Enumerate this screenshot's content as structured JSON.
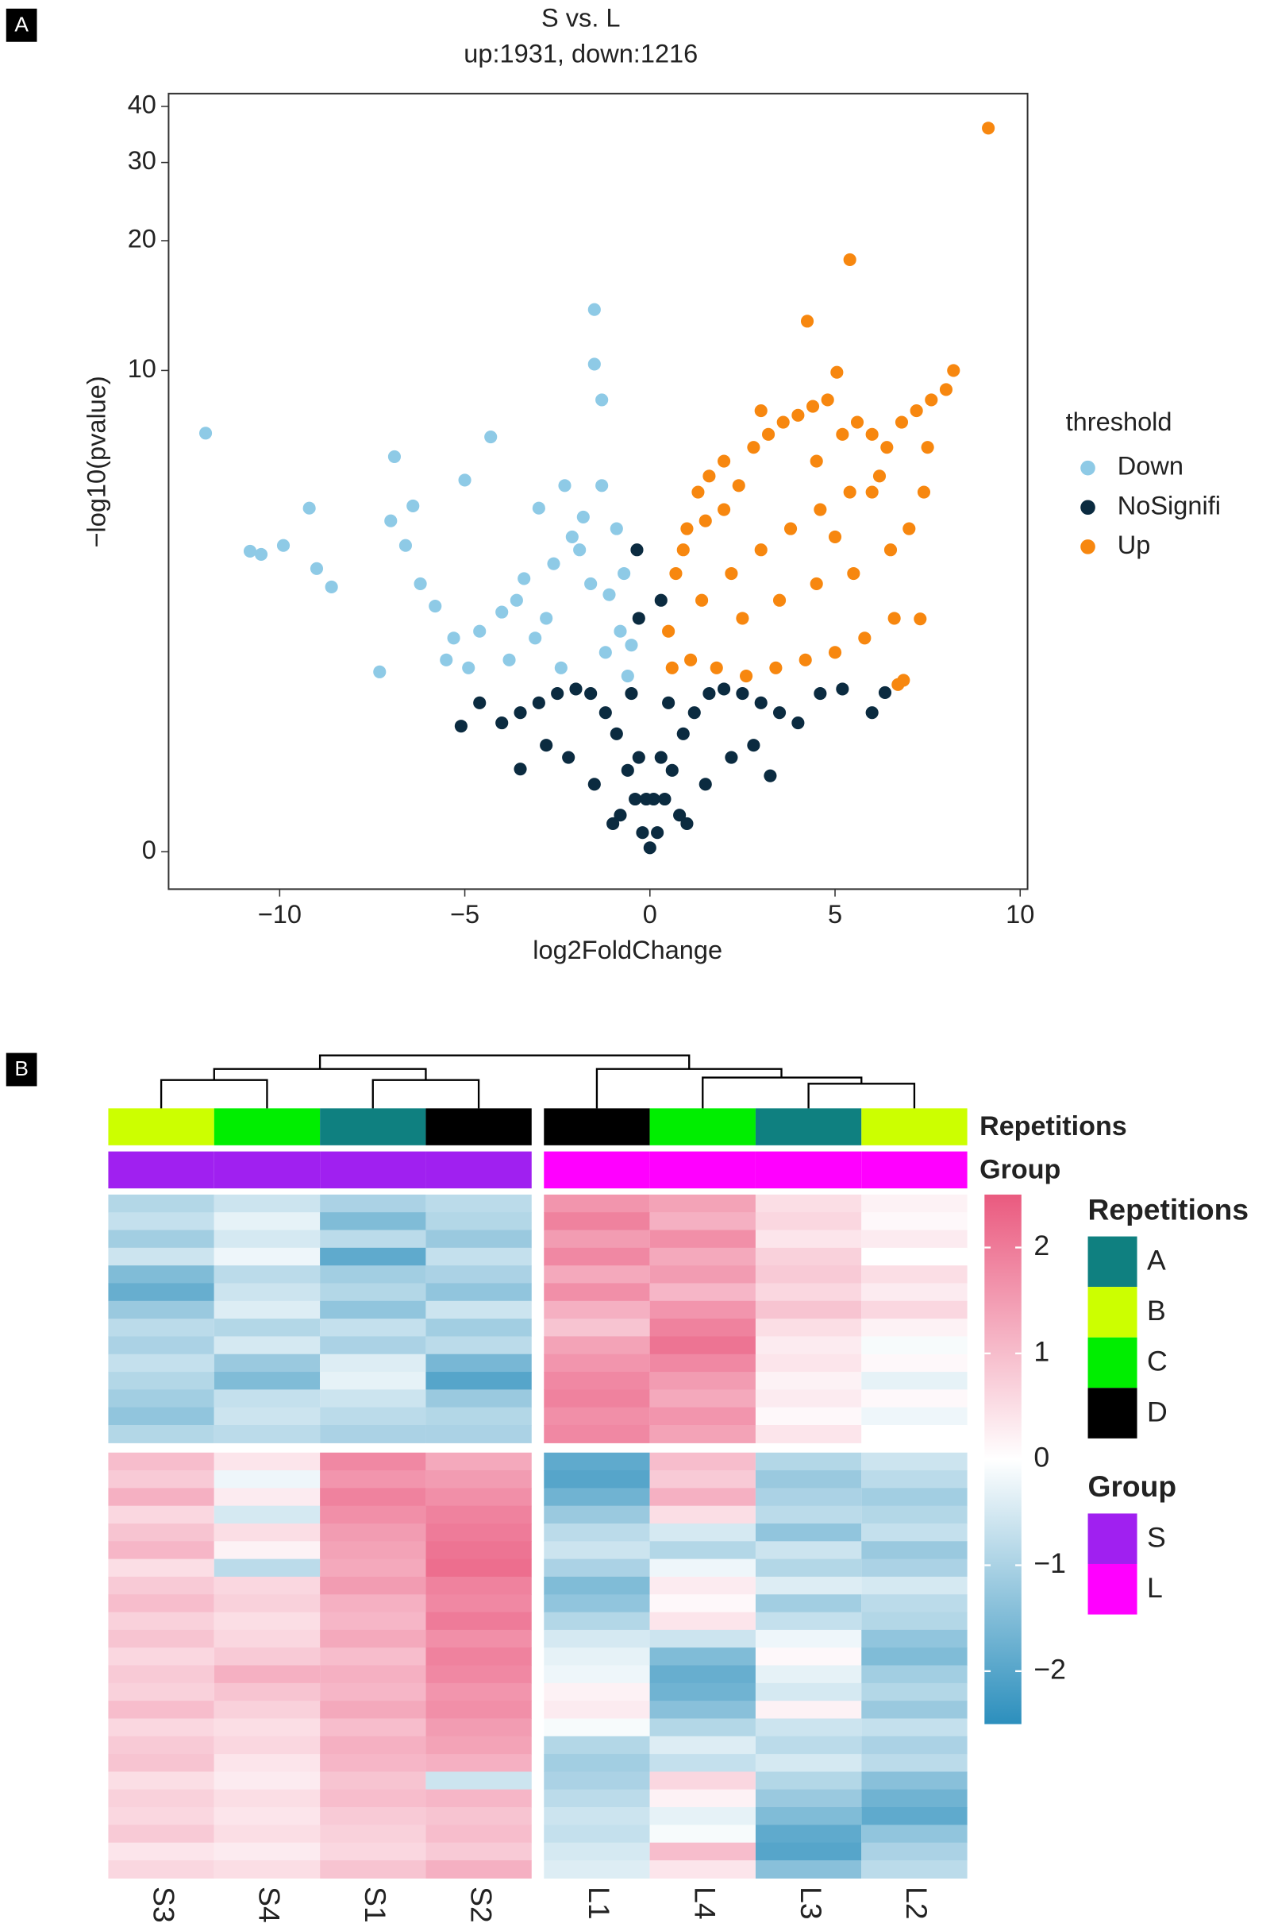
{
  "chart_data": [
    {
      "type": "scatter",
      "panel_label": "A",
      "title": "S vs. L",
      "subtitle": "up:1931, down:1216",
      "x_label": "log2FoldChange",
      "y_label": "−log10(pvalue)",
      "y_scale": "log1p",
      "xlim": [
        -13,
        10.2
      ],
      "ylim": [
        -0.17,
        42.7
      ],
      "xticks": [
        {
          "value": -10,
          "label": "−10"
        },
        {
          "value": -5,
          "label": "−5"
        },
        0,
        5,
        10
      ],
      "yticks": [
        0,
        10,
        20,
        30,
        40
      ],
      "legend_title": "threshold",
      "legend_position": "right",
      "series": [
        {
          "name": "Down",
          "color": "#8ecae6",
          "x": [
            -12.0,
            -1.5,
            -1.5,
            -1.3,
            -4.3,
            -6.9,
            -9.2,
            -10.8,
            -10.5,
            -9.9,
            -9.0,
            -8.6,
            -7.3,
            -5.0,
            -3.0,
            -2.3,
            -1.3,
            -1.8,
            -2.1,
            -0.9,
            -0.7,
            -1.1,
            -2.6,
            -3.4,
            -4.0,
            -4.6,
            -5.3,
            -5.8,
            -6.2,
            -6.6,
            -7.0,
            -3.8,
            -3.1,
            -2.8,
            -1.6,
            -0.8,
            -1.2,
            -2.4,
            -1.9,
            -0.6,
            -4.9,
            -5.5,
            -3.6,
            -6.4,
            -0.5
          ],
          "y": [
            7.05,
            13.9,
            10.35,
            8.5,
            6.9,
            6.16,
            4.54,
            3.47,
            3.4,
            3.6,
            3.1,
            2.74,
            1.45,
            5.37,
            4.54,
            5.2,
            5.2,
            4.3,
            3.8,
            4.0,
            3.0,
            2.6,
            3.2,
            2.9,
            2.3,
            2.0,
            1.9,
            2.4,
            2.8,
            3.6,
            4.2,
            1.6,
            1.9,
            2.2,
            2.8,
            2.0,
            1.7,
            1.5,
            3.5,
            1.4,
            1.5,
            1.6,
            2.5,
            4.6,
            1.8
          ]
        },
        {
          "name": "NoSignifi",
          "color": "#0b2b40",
          "x": [
            0,
            0.2,
            -0.2,
            0.4,
            -0.4,
            0.6,
            -0.6,
            0.9,
            -0.9,
            1.2,
            -1.2,
            1.6,
            -1.6,
            2.0,
            -2.0,
            2.5,
            -2.5,
            3.0,
            -3.0,
            3.5,
            -3.5,
            4.0,
            -4.0,
            4.6,
            -4.6,
            5.2,
            -5.1,
            6.35,
            6.0,
            -3.5,
            3.25,
            0.1,
            -0.1,
            0.3,
            -0.3,
            0.8,
            -0.8,
            1.5,
            -1.5,
            2.2,
            -2.2,
            2.8,
            -2.8,
            -0.35,
            -0.3,
            0.3,
            1.0,
            -1.0,
            0.5,
            -0.5
          ],
          "y": [
            0.02,
            0.1,
            0.1,
            0.3,
            0.3,
            0.5,
            0.5,
            0.8,
            0.8,
            1.0,
            1.0,
            1.2,
            1.2,
            1.25,
            1.25,
            1.2,
            1.2,
            1.1,
            1.1,
            1.0,
            1.0,
            0.9,
            0.9,
            1.2,
            1.1,
            1.25,
            0.87,
            1.21,
            1.0,
            0.51,
            0.46,
            0.3,
            0.3,
            0.6,
            0.6,
            0.2,
            0.2,
            0.4,
            0.4,
            0.6,
            0.6,
            0.7,
            0.7,
            3.5,
            2.2,
            2.5,
            0.15,
            0.15,
            1.1,
            1.2
          ]
        },
        {
          "name": "Up",
          "color": "#f7870f",
          "x": [
            9.14,
            5.4,
            4.25,
            5.05,
            8.2,
            8.0,
            7.3,
            6.85,
            6.7,
            0.5,
            0.7,
            1.0,
            1.3,
            1.6,
            2.0,
            2.4,
            2.8,
            3.2,
            3.6,
            4.0,
            4.4,
            4.8,
            5.2,
            5.6,
            6.0,
            6.4,
            6.8,
            7.2,
            7.6,
            0.6,
            1.1,
            1.8,
            2.6,
            3.4,
            4.2,
            5.0,
            5.8,
            6.6,
            7.4,
            1.4,
            2.2,
            3.0,
            3.8,
            4.6,
            5.4,
            6.2,
            0.9,
            1.5,
            2.5,
            3.5,
            4.5,
            5.5,
            6.5,
            7.0,
            3.0,
            4.5,
            2.0,
            5.0,
            6.0,
            7.5
          ],
          "y": [
            35.8,
            18.1,
            13.06,
            9.9,
            10.0,
            9.0,
            2.19,
            1.35,
            1.3,
            2.0,
            3.0,
            4.0,
            5.0,
            5.5,
            6.0,
            5.2,
            6.5,
            7.0,
            7.5,
            7.8,
            8.2,
            8.5,
            7.0,
            7.5,
            7.0,
            6.5,
            7.5,
            8.0,
            8.5,
            1.5,
            1.6,
            1.5,
            1.4,
            1.5,
            1.6,
            1.7,
            1.9,
            2.2,
            5.0,
            2.5,
            3.0,
            3.5,
            4.0,
            4.5,
            5.0,
            5.5,
            3.5,
            4.2,
            2.2,
            2.5,
            2.8,
            3.0,
            3.5,
            4.0,
            8.0,
            6.0,
            4.5,
            3.8,
            5.0,
            6.5
          ]
        }
      ]
    },
    {
      "type": "heatmap",
      "panel_label": "B",
      "columns": [
        "S3",
        "S4",
        "S1",
        "S2",
        "L1",
        "L4",
        "L3",
        "L2"
      ],
      "row_blocks": [
        [
          [
            -0.9,
            -0.6,
            -1.0,
            -0.8,
            1.6,
            1.4,
            0.5,
            0.2
          ],
          [
            -0.7,
            -0.3,
            -1.5,
            -0.9,
            1.9,
            1.2,
            0.6,
            0.1
          ],
          [
            -1.1,
            -0.5,
            -0.8,
            -1.2,
            1.5,
            1.7,
            0.4,
            0.3
          ],
          [
            -0.6,
            -0.2,
            -1.9,
            -0.7,
            1.8,
            1.3,
            0.7,
            0.0
          ],
          [
            -1.5,
            -0.8,
            -1.1,
            -1.0,
            1.3,
            1.5,
            0.8,
            0.5
          ],
          [
            -1.8,
            -0.6,
            -0.9,
            -1.3,
            1.7,
            1.1,
            0.6,
            0.3
          ],
          [
            -1.2,
            -0.4,
            -1.3,
            -0.6,
            1.2,
            1.6,
            0.9,
            0.6
          ],
          [
            -0.8,
            -0.9,
            -0.7,
            -1.1,
            0.9,
            1.9,
            0.5,
            0.2
          ],
          [
            -1.0,
            -0.5,
            -1.0,
            -0.8,
            1.4,
            2.1,
            0.3,
            -0.1
          ],
          [
            -0.7,
            -1.2,
            -0.4,
            -1.6,
            1.6,
            1.8,
            0.4,
            0.1
          ],
          [
            -0.9,
            -1.5,
            -0.3,
            -2.0,
            1.8,
            1.5,
            0.2,
            -0.3
          ],
          [
            -1.1,
            -0.7,
            -0.6,
            -1.2,
            1.9,
            1.3,
            0.3,
            0.1
          ],
          [
            -1.3,
            -0.6,
            -0.8,
            -0.9,
            1.7,
            1.6,
            0.1,
            -0.2
          ],
          [
            -0.9,
            -0.8,
            -1.0,
            -1.0,
            1.8,
            1.4,
            0.4,
            0.0
          ]
        ],
        [
          [
            1.0,
            0.4,
            1.8,
            1.3,
            -1.9,
            1.0,
            -0.9,
            -0.6
          ],
          [
            0.8,
            -0.2,
            1.6,
            1.5,
            -2.0,
            0.8,
            -1.2,
            -0.8
          ],
          [
            1.2,
            0.3,
            1.9,
            1.7,
            -1.7,
            1.2,
            -1.0,
            -1.1
          ],
          [
            0.6,
            -0.5,
            1.7,
            1.9,
            -1.2,
            0.5,
            -0.8,
            -0.9
          ],
          [
            0.9,
            0.5,
            1.5,
            2.0,
            -0.8,
            -0.5,
            -1.3,
            -0.7
          ],
          [
            1.1,
            0.2,
            1.4,
            2.1,
            -0.6,
            -0.9,
            -0.6,
            -1.2
          ],
          [
            0.5,
            -0.8,
            1.3,
            2.2,
            -1.0,
            -0.2,
            -0.9,
            -1.0
          ],
          [
            0.8,
            0.6,
            1.5,
            1.9,
            -1.5,
            0.3,
            -0.4,
            -0.5
          ],
          [
            1.0,
            0.7,
            1.2,
            1.8,
            -1.3,
            0.1,
            -1.1,
            -0.8
          ],
          [
            0.7,
            0.5,
            1.1,
            2.0,
            -0.9,
            0.4,
            -0.7,
            -0.9
          ],
          [
            0.9,
            0.6,
            1.3,
            1.7,
            -0.5,
            -0.6,
            -0.2,
            -1.3
          ],
          [
            0.6,
            0.8,
            1.0,
            1.9,
            -0.3,
            -1.5,
            0.1,
            -1.5
          ],
          [
            0.8,
            1.2,
            1.2,
            1.8,
            -0.2,
            -1.8,
            -0.3,
            -1.1
          ],
          [
            0.7,
            0.9,
            1.1,
            1.6,
            0.2,
            -1.7,
            -0.5,
            -0.9
          ],
          [
            1.0,
            0.7,
            1.3,
            1.7,
            0.3,
            -1.4,
            0.2,
            -1.2
          ],
          [
            0.6,
            0.5,
            1.0,
            1.5,
            -0.1,
            -0.9,
            -0.6,
            -0.7
          ],
          [
            0.8,
            0.6,
            1.2,
            1.4,
            -0.9,
            -0.4,
            -0.8,
            -1.0
          ],
          [
            0.9,
            0.4,
            1.1,
            1.2,
            -1.1,
            -0.7,
            -0.5,
            -0.8
          ],
          [
            0.5,
            0.3,
            0.9,
            -0.6,
            -1.0,
            0.6,
            -0.9,
            -1.4
          ],
          [
            0.7,
            0.5,
            1.0,
            1.1,
            -0.8,
            0.2,
            -1.2,
            -1.7
          ],
          [
            0.6,
            0.4,
            0.8,
            0.9,
            -0.6,
            -0.3,
            -1.5,
            -1.9
          ],
          [
            0.8,
            0.5,
            0.7,
            1.0,
            -0.7,
            -0.1,
            -1.9,
            -1.3
          ],
          [
            0.4,
            0.3,
            0.6,
            0.8,
            -0.5,
            1.0,
            -2.0,
            -1.0
          ],
          [
            0.6,
            0.5,
            0.9,
            1.2,
            -0.4,
            0.4,
            -1.4,
            -0.8
          ]
        ]
      ],
      "annotations": [
        {
          "name": "Repetitions",
          "values": [
            "B",
            "C",
            "A",
            "D",
            "D",
            "C",
            "A",
            "B"
          ]
        },
        {
          "name": "Group",
          "values": [
            "S",
            "S",
            "S",
            "S",
            "L",
            "L",
            "L",
            "L"
          ]
        }
      ],
      "legends": [
        {
          "title": "Repetitions",
          "levels": [
            "A",
            "B",
            "C",
            "D"
          ],
          "colors": [
            "#0f8080",
            "#ccff00",
            "#00ee00",
            "#000000"
          ]
        },
        {
          "title": "Group",
          "levels": [
            "S",
            "L"
          ],
          "colors": [
            "#a020f0",
            "#ff00ff"
          ]
        }
      ],
      "colorscale": [
        "#2c8fbd",
        "#ffffff",
        "#ea5a7f"
      ],
      "zlim": [
        -2.5,
        2.5
      ],
      "zticks": [
        {
          "value": -2,
          "label": "−2"
        },
        {
          "value": -1,
          "label": "−1"
        },
        0,
        1,
        2
      ]
    }
  ]
}
